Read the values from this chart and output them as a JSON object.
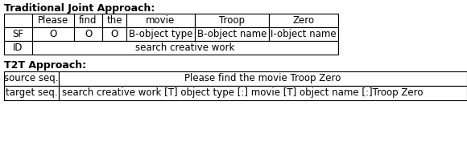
{
  "title1": "Traditional Joint Approach:",
  "title2": "T2T Approach:",
  "top_table": {
    "header": [
      "",
      "Please",
      "find",
      "the",
      "movie",
      "Troop",
      "Zero"
    ],
    "rows": [
      [
        "SF",
        "O",
        "O",
        "O",
        "B-object type",
        "B-object name",
        "I-object name"
      ],
      [
        "ID",
        "search creative work",
        "",
        "",
        "",
        "",
        ""
      ]
    ]
  },
  "bottom_table": {
    "rows": [
      [
        "source seq.",
        "Please find the movie Troop Zero"
      ],
      [
        "target seq.",
        "search creative work [T] object type [:] movie [T] object name [:]Troop Zero"
      ]
    ]
  },
  "font_family": "DejaVu Sans",
  "font_size": 8.5,
  "title_fontsize": 9,
  "bg_color": "#ffffff"
}
